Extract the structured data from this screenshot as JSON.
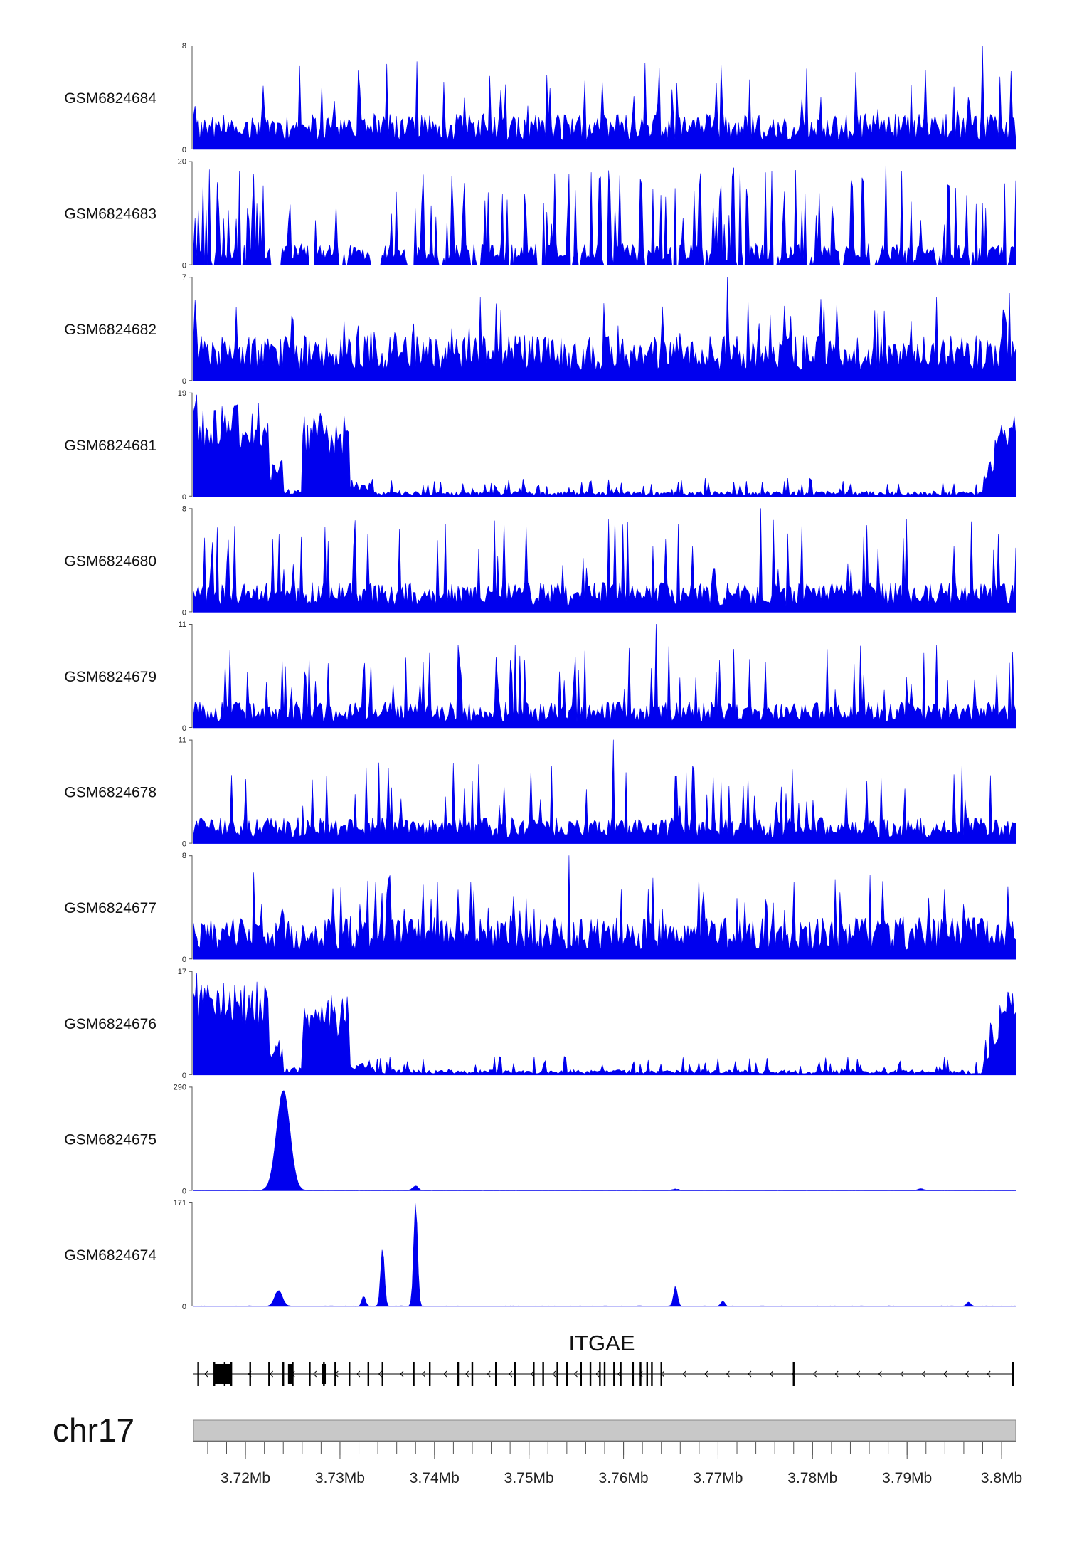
{
  "chart_data": {
    "type": "area",
    "genome": {
      "chromosome": "chr17",
      "region_mb": [
        3.7145,
        3.8015
      ],
      "ticks": [
        {
          "value": 3.72,
          "label": "3.72Mb"
        },
        {
          "value": 3.73,
          "label": "3.73Mb"
        },
        {
          "value": 3.74,
          "label": "3.74Mb"
        },
        {
          "value": 3.75,
          "label": "3.75Mb"
        },
        {
          "value": 3.76,
          "label": "3.76Mb"
        },
        {
          "value": 3.77,
          "label": "3.77Mb"
        },
        {
          "value": 3.78,
          "label": "3.78Mb"
        },
        {
          "value": 3.79,
          "label": "3.79Mb"
        },
        {
          "value": 3.8,
          "label": "3.8Mb"
        }
      ],
      "minor_tick_step_mb": 0.002
    },
    "series_color": "#0000ee",
    "tracks": [
      {
        "name": "GSM6824684",
        "ymax": 8,
        "ymin": 0,
        "profile": "noise",
        "seed": 11,
        "base": 0.3,
        "peak": 0.85
      },
      {
        "name": "GSM6824683",
        "ymax": 20,
        "ymin": 0,
        "profile": "sparse",
        "seed": 23,
        "base": 0.18,
        "peak": 0.95
      },
      {
        "name": "GSM6824682",
        "ymax": 7,
        "ymin": 0,
        "profile": "noise",
        "seed": 37,
        "base": 0.38,
        "peak": 0.85
      },
      {
        "name": "GSM6824681",
        "ymax": 19,
        "ymin": 0,
        "profile": "left_block",
        "seed": 41
      },
      {
        "name": "GSM6824680",
        "ymax": 8,
        "ymin": 0,
        "profile": "noise",
        "seed": 53,
        "base": 0.25,
        "peak": 0.9
      },
      {
        "name": "GSM6824679",
        "ymax": 11,
        "ymin": 0,
        "profile": "noise",
        "seed": 61,
        "base": 0.22,
        "peak": 0.8
      },
      {
        "name": "GSM6824678",
        "ymax": 11,
        "ymin": 0,
        "profile": "noise",
        "seed": 73,
        "base": 0.22,
        "peak": 0.8
      },
      {
        "name": "GSM6824677",
        "ymax": 8,
        "ymin": 0,
        "profile": "noise",
        "seed": 89,
        "base": 0.35,
        "peak": 0.85
      },
      {
        "name": "GSM6824676",
        "ymax": 17,
        "ymin": 0,
        "profile": "left_block",
        "seed": 97
      },
      {
        "name": "GSM6824675",
        "ymax": 290,
        "ymin": 0,
        "profile": "peaks",
        "peaks": [
          {
            "pos": 3.724,
            "height": 280,
            "width": 0.0007
          },
          {
            "pos": 3.738,
            "height": 12,
            "width": 0.0003
          },
          {
            "pos": 3.7655,
            "height": 4,
            "width": 0.0003
          },
          {
            "pos": 3.7915,
            "height": 5,
            "width": 0.0003
          }
        ]
      },
      {
        "name": "GSM6824674",
        "ymax": 171,
        "ymin": 0,
        "profile": "peaks",
        "peaks": [
          {
            "pos": 3.7235,
            "height": 26,
            "width": 0.0004
          },
          {
            "pos": 3.7325,
            "height": 16,
            "width": 0.0002
          },
          {
            "pos": 3.7345,
            "height": 95,
            "width": 0.0002
          },
          {
            "pos": 3.738,
            "height": 171,
            "width": 0.0002
          },
          {
            "pos": 3.7655,
            "height": 33,
            "width": 0.0002
          },
          {
            "pos": 3.7705,
            "height": 8,
            "width": 0.0002
          },
          {
            "pos": 3.7965,
            "height": 7,
            "width": 0.0002
          }
        ]
      }
    ],
    "gene": {
      "name": "ITGAE",
      "strand": "-",
      "start": 3.7145,
      "end": 3.8012,
      "exons": [
        3.715,
        3.7167,
        3.7178,
        3.7185,
        3.7205,
        3.7225,
        3.724,
        3.725,
        3.7268,
        3.7283,
        3.7295,
        3.731,
        3.733,
        3.7345,
        3.7378,
        3.7395,
        3.7425,
        3.744,
        3.7465,
        3.7485,
        3.7505,
        3.7515,
        3.753,
        3.754,
        3.7555,
        3.7565,
        3.7575,
        3.758,
        3.759,
        3.7597,
        3.761,
        3.7618,
        3.7625,
        3.763,
        3.764,
        3.778,
        3.8012
      ],
      "thick_exons": [
        {
          "start": 3.7167,
          "end": 3.7185
        },
        {
          "start": 3.7245,
          "end": 3.725
        },
        {
          "start": 3.7281,
          "end": 3.7285
        }
      ]
    }
  }
}
